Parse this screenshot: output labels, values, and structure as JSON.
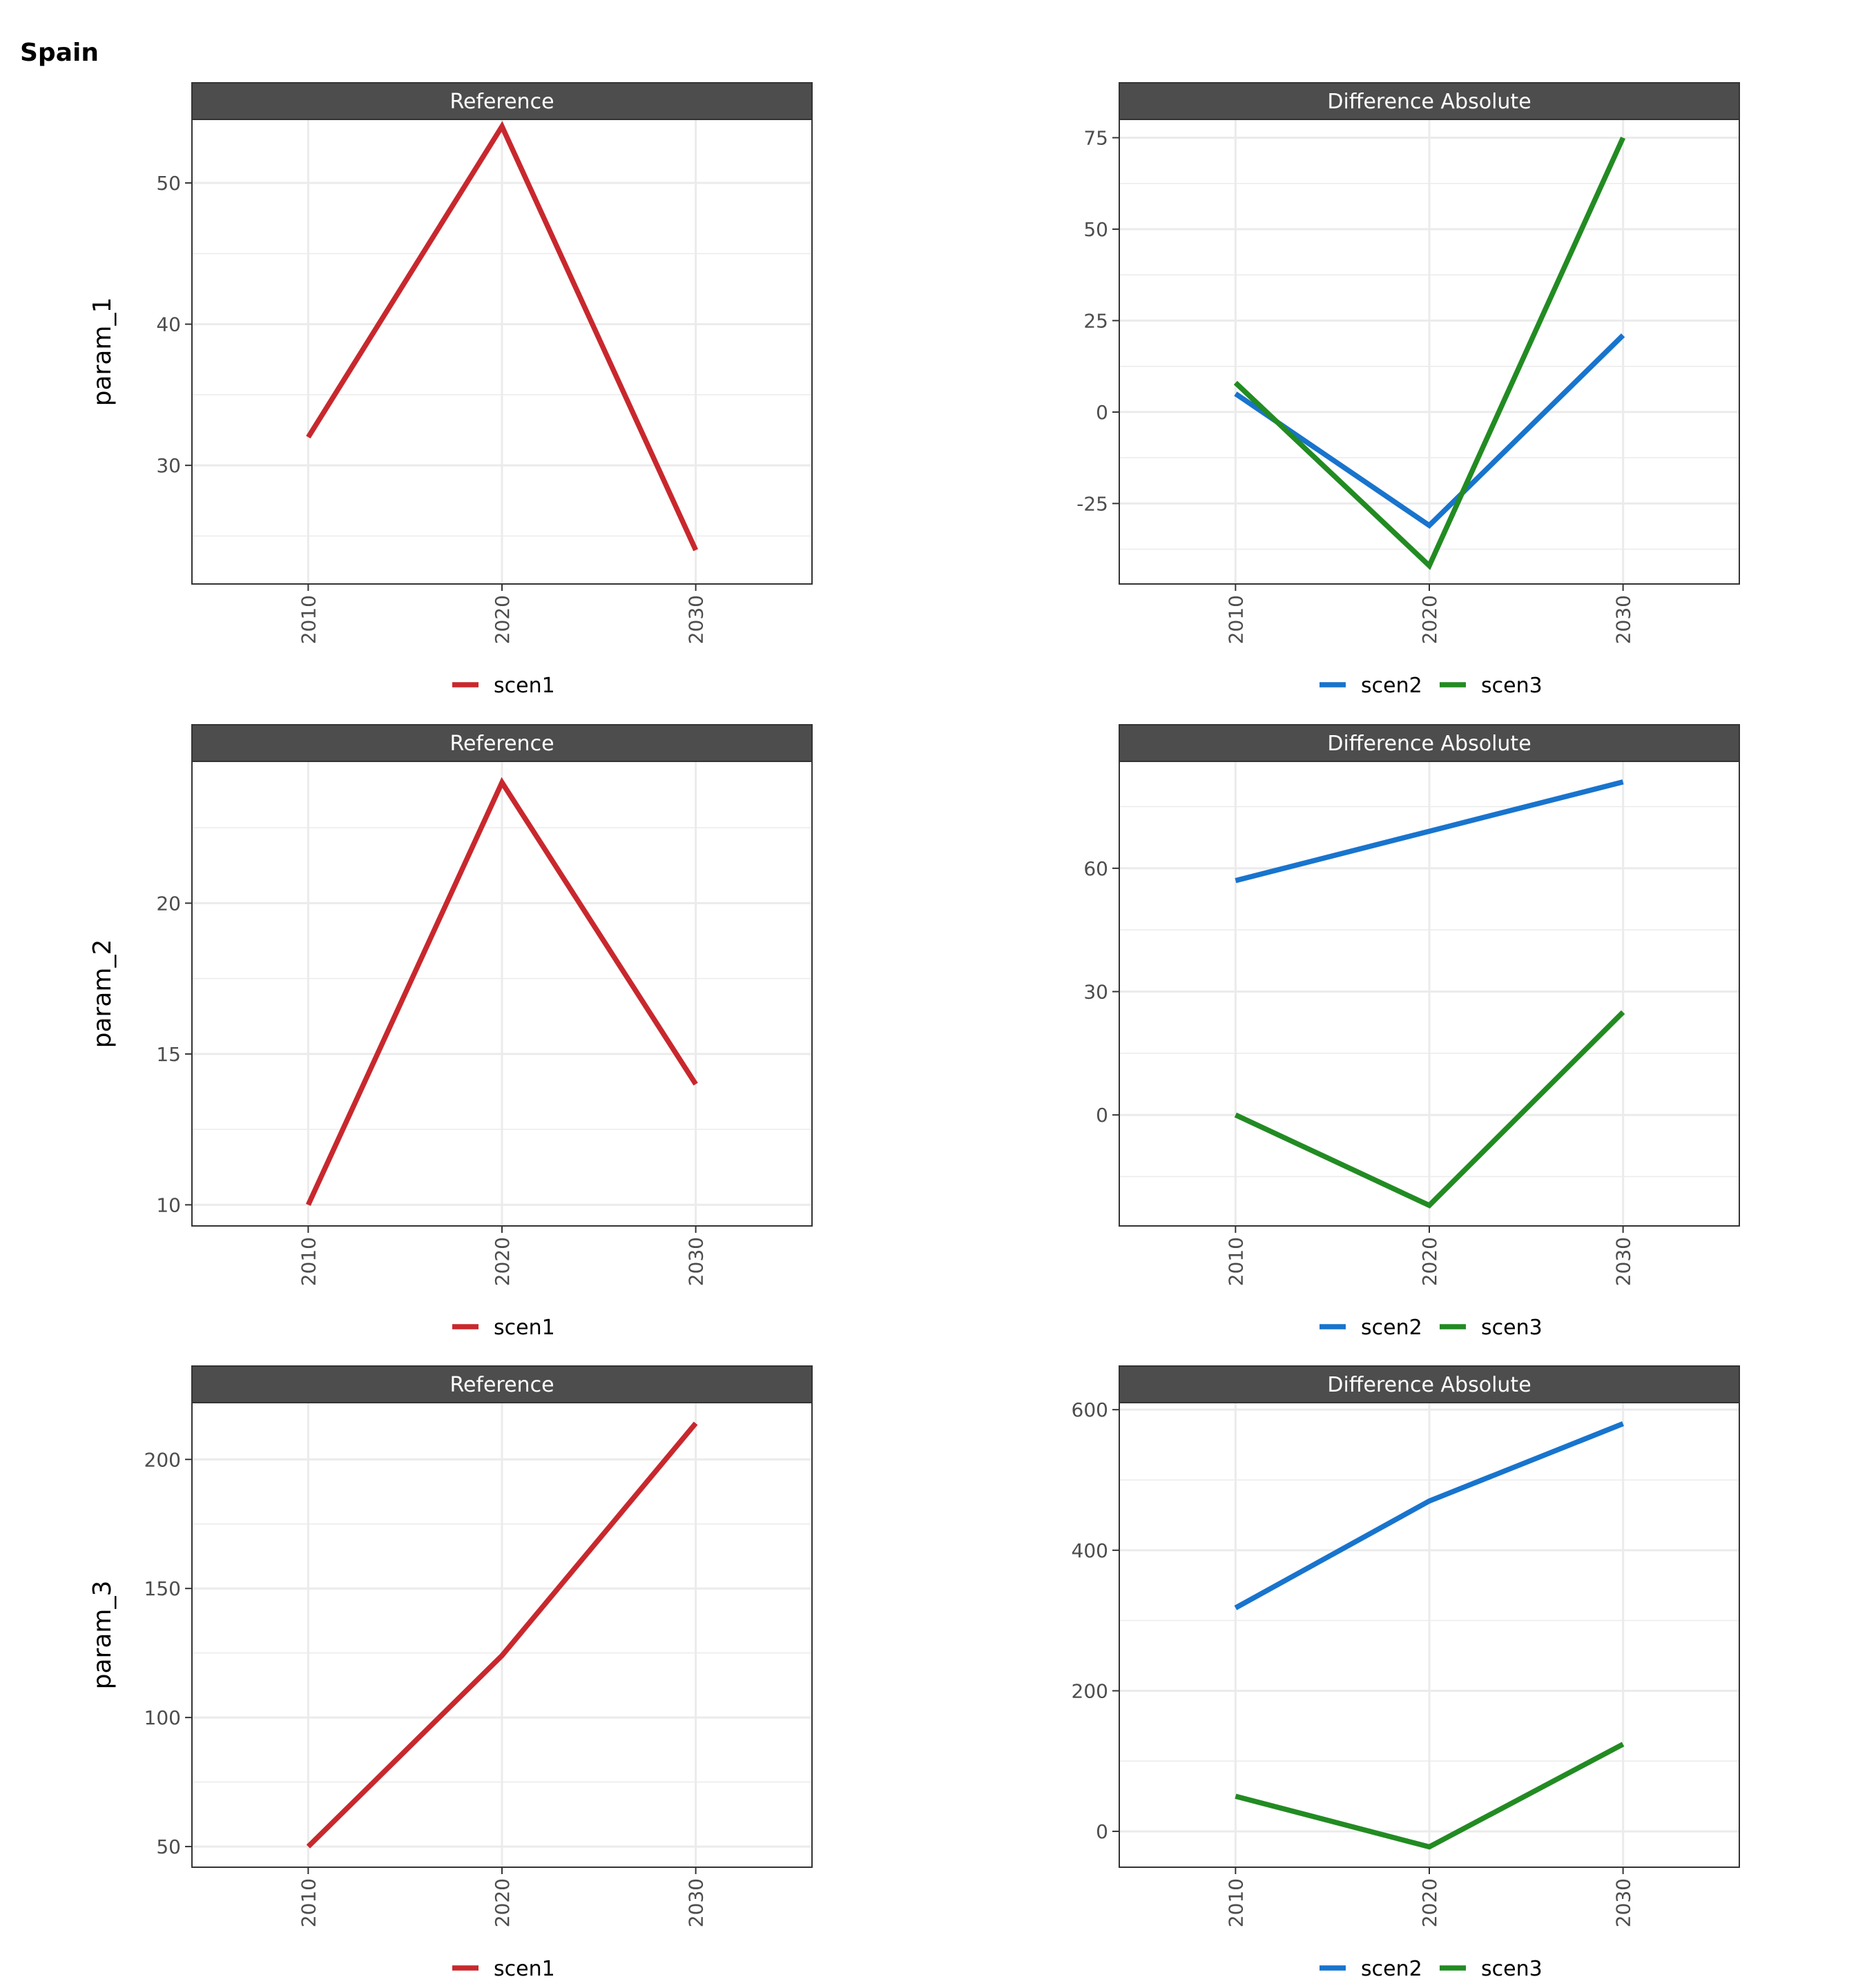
{
  "title": "Spain",
  "colors": {
    "scen1": "#C8282D",
    "scen2": "#1874CD",
    "scen3": "#228B22",
    "strip": "#4D4D4D",
    "grid": "#EBEBEB",
    "border": "#333333",
    "tick_text": "#4D4D4D"
  },
  "chart_data": [
    {
      "type": "line",
      "row_label": "param_1",
      "strip": "Reference",
      "x": [
        2010,
        2020,
        2030
      ],
      "xlim": [
        2004,
        2036
      ],
      "ylim": [
        21.6,
        54.5
      ],
      "yticks": [
        30,
        40,
        50
      ],
      "ytick_labels": [
        "30",
        "40",
        "50"
      ],
      "yminor": [
        25,
        35,
        45
      ],
      "series": [
        {
          "name": "scen1",
          "color": "#C8282D",
          "values": [
            32,
            54,
            24
          ]
        }
      ],
      "legend": [
        "scen1"
      ]
    },
    {
      "type": "line",
      "row_label": "",
      "strip": "Difference Absolute",
      "x": [
        2010,
        2020,
        2030
      ],
      "xlim": [
        2004,
        2036
      ],
      "ylim": [
        -47,
        80
      ],
      "yticks": [
        -25,
        0,
        25,
        50,
        75
      ],
      "ytick_labels": [
        "-25",
        "0",
        "25",
        "50",
        "75"
      ],
      "yminor": [
        -37.5,
        -12.5,
        12.5,
        37.5,
        62.5
      ],
      "series": [
        {
          "name": "scen2",
          "color": "#1874CD",
          "values": [
            5,
            -31,
            21
          ]
        },
        {
          "name": "scen3",
          "color": "#228B22",
          "values": [
            8,
            -42,
            75
          ]
        }
      ],
      "legend": [
        "scen2",
        "scen3"
      ]
    },
    {
      "type": "line",
      "row_label": "param_2",
      "strip": "Reference",
      "x": [
        2010,
        2020,
        2030
      ],
      "xlim": [
        2004,
        2036
      ],
      "ylim": [
        9.3,
        24.7
      ],
      "yticks": [
        10,
        15,
        20
      ],
      "ytick_labels": [
        "10",
        "15",
        "20"
      ],
      "yminor": [
        12.5,
        17.5,
        22.5
      ],
      "series": [
        {
          "name": "scen1",
          "color": "#C8282D",
          "values": [
            10,
            24,
            14
          ]
        }
      ],
      "legend": [
        "scen1"
      ]
    },
    {
      "type": "line",
      "row_label": "",
      "strip": "Difference Absolute",
      "x": [
        2010,
        2020,
        2030
      ],
      "xlim": [
        2004,
        2036
      ],
      "ylim": [
        -27,
        86
      ],
      "yticks": [
        0,
        30,
        60
      ],
      "ytick_labels": [
        "0",
        "30",
        "60"
      ],
      "yminor": [
        -15,
        15,
        45,
        75
      ],
      "series": [
        {
          "name": "scen2",
          "color": "#1874CD",
          "values": [
            57,
            69,
            81
          ]
        },
        {
          "name": "scen3",
          "color": "#228B22",
          "values": [
            0,
            -22,
            25
          ]
        }
      ],
      "legend": [
        "scen2",
        "scen3"
      ]
    },
    {
      "type": "line",
      "row_label": "param_3",
      "strip": "Reference",
      "x": [
        2010,
        2020,
        2030
      ],
      "xlim": [
        2004,
        2036
      ],
      "ylim": [
        42,
        222
      ],
      "yticks": [
        50,
        100,
        150,
        200
      ],
      "ytick_labels": [
        "50",
        "100",
        "150",
        "200"
      ],
      "yminor": [
        75,
        125,
        175
      ],
      "series": [
        {
          "name": "scen1",
          "color": "#C8282D",
          "values": [
            50,
            124,
            214
          ]
        }
      ],
      "legend": [
        "scen1"
      ]
    },
    {
      "type": "line",
      "row_label": "",
      "strip": "Difference Absolute",
      "x": [
        2010,
        2020,
        2030
      ],
      "xlim": [
        2004,
        2036
      ],
      "ylim": [
        -51,
        610
      ],
      "yticks": [
        0,
        200,
        400,
        600
      ],
      "ytick_labels": [
        "0",
        "200",
        "400",
        "600"
      ],
      "yminor": [
        100,
        300,
        500
      ],
      "series": [
        {
          "name": "scen2",
          "color": "#1874CD",
          "values": [
            318,
            470,
            580
          ]
        },
        {
          "name": "scen3",
          "color": "#228B22",
          "values": [
            50,
            -22,
            124
          ]
        }
      ],
      "legend": [
        "scen2",
        "scen3"
      ]
    }
  ]
}
